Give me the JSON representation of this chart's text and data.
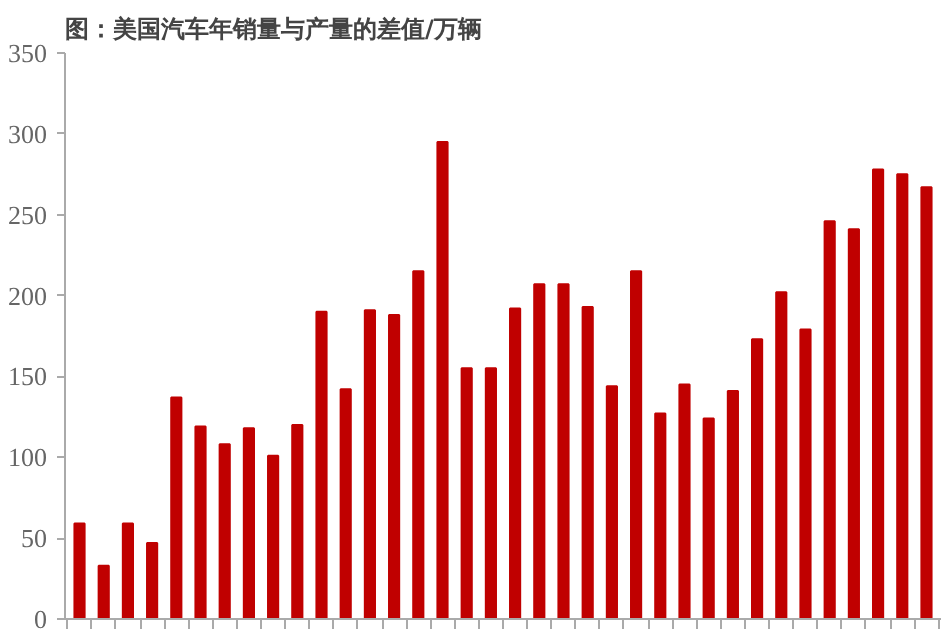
{
  "chart_data": {
    "type": "bar",
    "title": "图：美国汽车年销量与产量的差值/万辆",
    "categories": [
      null,
      null,
      null,
      null,
      null,
      null,
      null,
      null,
      null,
      null,
      null,
      null,
      null,
      null,
      null,
      null,
      null,
      null,
      null,
      null,
      null,
      null,
      null,
      null,
      null,
      null,
      null,
      null,
      null,
      null,
      null,
      null,
      null,
      null,
      null,
      null
    ],
    "values": [
      59,
      33,
      59,
      47,
      137,
      119,
      108,
      118,
      101,
      120,
      190,
      142,
      191,
      188,
      215,
      295,
      155,
      155,
      192,
      207,
      207,
      193,
      144,
      215,
      127,
      145,
      124,
      141,
      173,
      202,
      179,
      246,
      241,
      278,
      275,
      267
    ],
    "color": "#c00000",
    "ylim": [
      0,
      350
    ],
    "yticks": [
      0,
      50,
      100,
      150,
      200,
      250,
      300,
      350
    ],
    "grid": false
  }
}
